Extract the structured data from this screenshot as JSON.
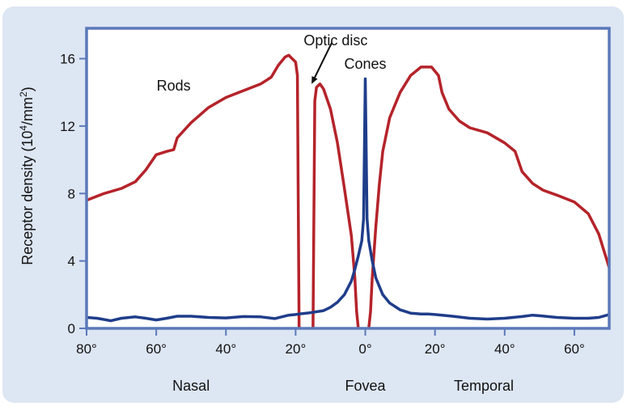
{
  "colors": {
    "rods": "#b5232a",
    "cones": "#1f3d8a",
    "frame": "#5b79b9",
    "background": "#dde6f3"
  },
  "chart_data": {
    "type": "line",
    "title": "",
    "xlabel": "",
    "ylabel_parts": {
      "prefix": "Receptor density (10",
      "exp1": "4",
      "middle": "/mm",
      "exp2": "2",
      "suffix": ")"
    },
    "xlim": [
      -80,
      70
    ],
    "ylim": [
      0,
      17.8
    ],
    "x_ticks": [
      {
        "value": -80,
        "label": "80°"
      },
      {
        "value": -60,
        "label": "60°"
      },
      {
        "value": -40,
        "label": "40°"
      },
      {
        "value": -20,
        "label": "20°"
      },
      {
        "value": 0,
        "label": "0°"
      },
      {
        "value": 20,
        "label": "20°"
      },
      {
        "value": 40,
        "label": "40°"
      },
      {
        "value": 60,
        "label": "60°"
      }
    ],
    "y_ticks": [
      {
        "value": 0,
        "label": "0"
      },
      {
        "value": 4,
        "label": "4"
      },
      {
        "value": 8,
        "label": "8"
      },
      {
        "value": 12,
        "label": "12"
      },
      {
        "value": 16,
        "label": "16"
      }
    ],
    "regions": [
      {
        "label": "Nasal",
        "x": -50
      },
      {
        "label": "Fovea",
        "x": 0
      },
      {
        "label": "Temporal",
        "x": 34
      }
    ],
    "series": [
      {
        "name": "Rods",
        "segments": [
          [
            [
              -80,
              7.6
            ],
            [
              -75,
              8.0
            ],
            [
              -70,
              8.3
            ],
            [
              -66,
              8.7
            ],
            [
              -63,
              9.4
            ],
            [
              -60,
              10.3
            ],
            [
              -57,
              10.5
            ],
            [
              -55,
              10.6
            ],
            [
              -54,
              11.3
            ],
            [
              -50,
              12.2
            ],
            [
              -45,
              13.1
            ],
            [
              -40,
              13.7
            ],
            [
              -35,
              14.1
            ],
            [
              -30,
              14.5
            ],
            [
              -27,
              14.9
            ],
            [
              -25,
              15.6
            ],
            [
              -23,
              16.1
            ],
            [
              -22,
              16.2
            ],
            [
              -21,
              16.0
            ],
            [
              -20,
              15.8
            ],
            [
              -19.5,
              15.0
            ],
            [
              -19,
              0
            ]
          ],
          [
            [
              -15,
              0
            ],
            [
              -14.5,
              13.5
            ],
            [
              -14,
              14.3
            ],
            [
              -13,
              14.5
            ],
            [
              -12,
              14.2
            ],
            [
              -10,
              13.0
            ],
            [
              -8,
              11.0
            ],
            [
              -6,
              8.3
            ],
            [
              -4,
              5.5
            ],
            [
              -3,
              3.0
            ],
            [
              -2.5,
              1.0
            ],
            [
              -2,
              0
            ]
          ],
          [
            [
              1,
              0
            ],
            [
              1.5,
              1.0
            ],
            [
              2,
              3.0
            ],
            [
              3,
              6.0
            ],
            [
              4,
              8.5
            ],
            [
              5,
              10.5
            ],
            [
              7,
              12.5
            ],
            [
              10,
              14.0
            ],
            [
              13,
              15.0
            ],
            [
              16,
              15.5
            ],
            [
              19,
              15.5
            ],
            [
              21,
              15.0
            ],
            [
              22,
              14.0
            ],
            [
              24,
              13.0
            ],
            [
              27,
              12.3
            ],
            [
              30,
              11.9
            ],
            [
              35,
              11.6
            ],
            [
              40,
              11.0
            ],
            [
              43,
              10.5
            ],
            [
              45,
              9.3
            ],
            [
              48,
              8.6
            ],
            [
              51,
              8.2
            ],
            [
              55,
              7.9
            ],
            [
              60,
              7.5
            ],
            [
              64,
              6.8
            ],
            [
              67,
              5.6
            ],
            [
              70,
              3.6
            ]
          ]
        ]
      },
      {
        "name": "Cones",
        "segments": [
          [
            [
              -80,
              0.65
            ],
            [
              -77,
              0.6
            ],
            [
              -73,
              0.45
            ],
            [
              -70,
              0.6
            ],
            [
              -66,
              0.68
            ],
            [
              -63,
              0.6
            ],
            [
              -60,
              0.5
            ],
            [
              -57,
              0.6
            ],
            [
              -54,
              0.72
            ],
            [
              -50,
              0.72
            ],
            [
              -45,
              0.65
            ],
            [
              -40,
              0.62
            ],
            [
              -35,
              0.7
            ],
            [
              -30,
              0.68
            ],
            [
              -26,
              0.58
            ],
            [
              -24,
              0.68
            ],
            [
              -22,
              0.78
            ],
            [
              -20,
              0.82
            ],
            [
              -18,
              0.88
            ],
            [
              -16,
              0.92
            ],
            [
              -12,
              1.05
            ],
            [
              -10,
              1.25
            ],
            [
              -8,
              1.55
            ],
            [
              -6,
              2.0
            ],
            [
              -4,
              2.8
            ],
            [
              -3,
              3.5
            ],
            [
              -2,
              4.3
            ],
            [
              -1,
              5.2
            ],
            [
              -0.5,
              6.5
            ],
            [
              0,
              14.8
            ],
            [
              0.5,
              6.5
            ],
            [
              1,
              5.2
            ],
            [
              2,
              4.0
            ],
            [
              3,
              3.0
            ],
            [
              5,
              2.0
            ],
            [
              7,
              1.5
            ],
            [
              10,
              1.1
            ],
            [
              13,
              0.9
            ],
            [
              16,
              0.85
            ],
            [
              18,
              0.85
            ],
            [
              20,
              0.82
            ],
            [
              25,
              0.72
            ],
            [
              28,
              0.65
            ],
            [
              30,
              0.6
            ],
            [
              35,
              0.55
            ],
            [
              40,
              0.6
            ],
            [
              45,
              0.7
            ],
            [
              48,
              0.78
            ],
            [
              50,
              0.75
            ],
            [
              55,
              0.65
            ],
            [
              60,
              0.6
            ],
            [
              64,
              0.6
            ],
            [
              67,
              0.65
            ],
            [
              70,
              0.82
            ]
          ]
        ]
      }
    ],
    "annotations": [
      {
        "text": "Rods",
        "x": -55,
        "y": 14.1
      },
      {
        "text": "Optic disc",
        "x": -8.5,
        "y": 16.8
      },
      {
        "text": "Cones",
        "x": 0,
        "y": 15.4
      }
    ]
  }
}
